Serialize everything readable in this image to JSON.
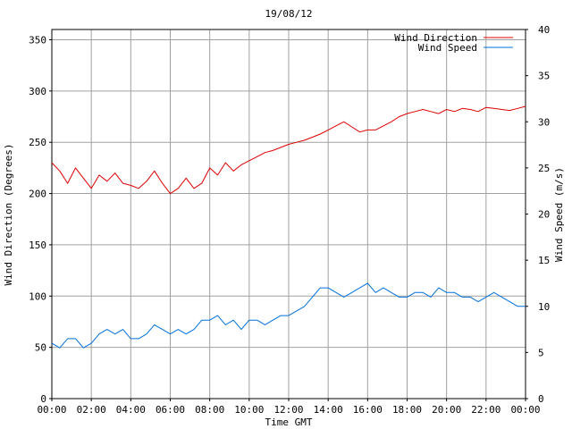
{
  "chart_data": {
    "type": "line",
    "title": "19/08/12",
    "xlabel": "Time GMT",
    "ylabel_left": "Wind Direction (Degrees)",
    "ylabel_right": "Wind Speed (m/s)",
    "xlim": [
      0,
      24
    ],
    "ylim_left": [
      0,
      360
    ],
    "ylim_right": [
      0,
      40
    ],
    "grid": true,
    "legend_position": "top-right",
    "x_ticks": [
      0,
      2,
      4,
      6,
      8,
      10,
      12,
      14,
      16,
      18,
      20,
      22,
      24
    ],
    "x_tick_labels": [
      "00:00",
      "02:00",
      "04:00",
      "06:00",
      "08:00",
      "10:00",
      "12:00",
      "14:00",
      "16:00",
      "18:00",
      "20:00",
      "22:00",
      "00:00"
    ],
    "y_ticks_left": [
      0,
      50,
      100,
      150,
      200,
      250,
      300,
      350
    ],
    "y_tick_labels_left": [
      "0",
      "50",
      "100",
      "150",
      "200",
      "250",
      "300",
      "350"
    ],
    "y_ticks_right": [
      0,
      5,
      10,
      15,
      20,
      25,
      30,
      35,
      40
    ],
    "y_tick_labels_right": [
      "0",
      "5",
      "10",
      "15",
      "20",
      "25",
      "30",
      "35",
      "40"
    ],
    "series": [
      {
        "name": "Wind Direction",
        "axis": "left",
        "color": "#dd0000",
        "x": [
          0,
          0.4,
          0.8,
          1.2,
          1.6,
          2,
          2.4,
          2.8,
          3.2,
          3.6,
          4,
          4.4,
          4.8,
          5.2,
          5.6,
          6,
          6.4,
          6.8,
          7.2,
          7.6,
          8,
          8.4,
          8.8,
          9.2,
          9.6,
          10,
          10.4,
          10.8,
          11.2,
          11.6,
          12,
          12.4,
          12.8,
          13.2,
          13.6,
          14,
          14.4,
          14.8,
          15.2,
          15.6,
          16,
          16.4,
          16.8,
          17.2,
          17.6,
          18,
          18.4,
          18.8,
          19.2,
          19.6,
          20,
          20.4,
          20.8,
          21.2,
          21.6,
          22,
          22.4,
          22.8,
          23.2,
          23.6,
          24
        ],
        "values": [
          230,
          222,
          210,
          225,
          215,
          205,
          218,
          212,
          220,
          210,
          208,
          205,
          212,
          222,
          210,
          200,
          205,
          215,
          205,
          210,
          225,
          218,
          230,
          222,
          228,
          232,
          236,
          240,
          242,
          245,
          248,
          250,
          252,
          255,
          258,
          262,
          266,
          270,
          265,
          260,
          262,
          262,
          266,
          270,
          275,
          278,
          280,
          282,
          280,
          278,
          282,
          280,
          283,
          282,
          280,
          284,
          283,
          282,
          281,
          283,
          285
        ]
      },
      {
        "name": "Wind Speed",
        "axis": "right",
        "color": "#0070dd",
        "x": [
          0,
          0.4,
          0.8,
          1.2,
          1.6,
          2,
          2.4,
          2.8,
          3.2,
          3.6,
          4,
          4.4,
          4.8,
          5.2,
          5.6,
          6,
          6.4,
          6.8,
          7.2,
          7.6,
          8,
          8.4,
          8.8,
          9.2,
          9.6,
          10,
          10.4,
          10.8,
          11.2,
          11.6,
          12,
          12.4,
          12.8,
          13.2,
          13.6,
          14,
          14.4,
          14.8,
          15.2,
          15.6,
          16,
          16.4,
          16.8,
          17.2,
          17.6,
          18,
          18.4,
          18.8,
          19.2,
          19.6,
          20,
          20.4,
          20.8,
          21.2,
          21.6,
          22,
          22.4,
          22.8,
          23.2,
          23.6,
          24
        ],
        "values": [
          6.0,
          5.5,
          6.5,
          6.5,
          5.5,
          6.0,
          7.0,
          7.5,
          7.0,
          7.5,
          6.5,
          6.5,
          7.0,
          8.0,
          7.5,
          7.0,
          7.5,
          7.0,
          7.5,
          8.5,
          8.5,
          9.0,
          8.0,
          8.5,
          7.5,
          8.5,
          8.5,
          8.0,
          8.5,
          9.0,
          9.0,
          9.5,
          10.0,
          11.0,
          12.0,
          12.0,
          11.5,
          11.0,
          11.5,
          12.0,
          12.5,
          11.5,
          12.0,
          11.5,
          11.0,
          11.0,
          11.5,
          11.5,
          11.0,
          12.0,
          11.5,
          11.5,
          11.0,
          11.0,
          10.5,
          11.0,
          11.5,
          11.0,
          10.5,
          10.0,
          10.0
        ]
      }
    ]
  }
}
